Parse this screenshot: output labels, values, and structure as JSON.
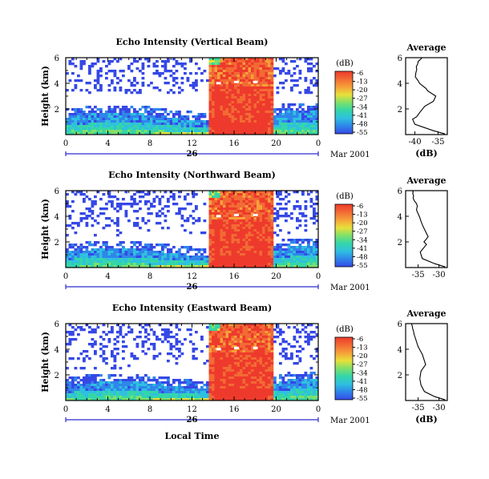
{
  "colors": {
    "background": "#ffffff",
    "echo_scale": [
      "#3548e6",
      "#2f86ea",
      "#2fc0e0",
      "#34d6a8",
      "#7fe06a",
      "#e8e03a",
      "#f6a03a",
      "#f26a34",
      "#ee3a2c"
    ],
    "profile_line": "#000000"
  },
  "chart_data": [
    {
      "type": "heatmap",
      "title": "Echo Intensity (Vertical Beam)",
      "ylabel": "Height (km)",
      "xlabel": "",
      "x_ticks": [
        "0",
        "4",
        "8",
        "12",
        "16",
        "20",
        "0"
      ],
      "y_ticks": [
        "6",
        "4",
        "2"
      ],
      "xlim": [
        0,
        24
      ],
      "ylim": [
        0,
        6
      ],
      "date_label": "26",
      "month_label": "Mar 2001",
      "colorbar": {
        "unit": "(dB)",
        "ticks": [
          "-6",
          "-13",
          "-20",
          "-27",
          "-34",
          "-41",
          "-48",
          "-55"
        ],
        "range": [
          -55,
          -6
        ]
      },
      "rain_period_hours": [
        13.5,
        19.5
      ],
      "grid": false
    },
    {
      "type": "line",
      "title": "Average",
      "xlabel": "(dB)",
      "ylabel": "",
      "x_ticks": [
        "-40",
        "-35"
      ],
      "y_ticks": [
        "6",
        "4",
        "2"
      ],
      "xlim": [
        -42,
        -33
      ],
      "ylim": [
        0,
        6
      ],
      "series": [
        {
          "x": [
            -33.5,
            -36,
            -40,
            -40.5,
            -39.6,
            -39,
            -37.9,
            -36,
            -35.5,
            -37.2,
            -37.6,
            -39,
            -39.3,
            -39.9,
            -39.8,
            -39.6,
            -39.7,
            -39.4,
            -39.3,
            -39,
            -38.7,
            -38.5,
            -38.2
          ],
          "y": [
            0.05,
            0.3,
            0.8,
            1.2,
            1.4,
            1.7,
            2.2,
            2.6,
            3.0,
            3.4,
            3.6,
            4.0,
            4.2,
            4.5,
            4.8,
            5.1,
            5.3,
            5.5,
            5.7,
            5.8,
            5.9,
            6.0,
            6.0
          ]
        }
      ]
    },
    {
      "type": "heatmap",
      "title": "Echo Intensity (Northward Beam)",
      "ylabel": "Height (km)",
      "xlabel": "",
      "x_ticks": [
        "0",
        "4",
        "8",
        "12",
        "16",
        "20",
        "0"
      ],
      "y_ticks": [
        "6",
        "4",
        "2"
      ],
      "xlim": [
        0,
        24
      ],
      "ylim": [
        0,
        6
      ],
      "date_label": "26",
      "month_label": "Mar 2001",
      "colorbar": {
        "unit": "(dB)",
        "ticks": [
          "-6",
          "-13",
          "-20",
          "-27",
          "-34",
          "-41",
          "-48",
          "-55"
        ],
        "range": [
          -55,
          -6
        ]
      },
      "rain_period_hours": [
        13.5,
        19.5
      ],
      "grid": false
    },
    {
      "type": "line",
      "title": "Average",
      "xlabel": "",
      "ylabel": "",
      "x_ticks": [
        "-35",
        "-30"
      ],
      "y_ticks": [
        "6",
        "4",
        "2"
      ],
      "xlim": [
        -38,
        -28
      ],
      "ylim": [
        0,
        6
      ],
      "series": [
        {
          "x": [
            -28.5,
            -31,
            -34,
            -34.5,
            -33,
            -33.6,
            -32.6,
            -33.2,
            -33.8,
            -34.3,
            -34.6,
            -35,
            -35.4,
            -35.2,
            -35.4,
            -35.9,
            -36.2,
            -36.1,
            -36.3,
            -36.2,
            -36.4
          ],
          "y": [
            0.05,
            0.3,
            0.7,
            1.2,
            1.8,
            2.0,
            2.4,
            2.8,
            3.2,
            3.6,
            3.9,
            4.2,
            4.5,
            4.8,
            5.0,
            5.2,
            5.4,
            5.6,
            5.8,
            5.9,
            6.0
          ]
        }
      ]
    },
    {
      "type": "heatmap",
      "title": "Echo Intensity (Eastward Beam)",
      "ylabel": "Height (km)",
      "xlabel": "Local Time",
      "x_ticks": [
        "0",
        "4",
        "8",
        "12",
        "16",
        "20",
        "0"
      ],
      "y_ticks": [
        "6",
        "4",
        "2"
      ],
      "xlim": [
        0,
        24
      ],
      "ylim": [
        0,
        6
      ],
      "date_label": "26",
      "month_label": "Mar 2001",
      "colorbar": {
        "unit": "(dB)",
        "ticks": [
          "-6",
          "-13",
          "-20",
          "-27",
          "-34",
          "-41",
          "-48",
          "-55"
        ],
        "range": [
          -55,
          -6
        ]
      },
      "rain_period_hours": [
        13.5,
        19.5
      ],
      "grid": false
    },
    {
      "type": "line",
      "title": "Average",
      "xlabel": "(dB)",
      "ylabel": "",
      "x_ticks": [
        "-35",
        "-30"
      ],
      "y_ticks": [
        "6",
        "4",
        "2"
      ],
      "xlim": [
        -38,
        -28
      ],
      "ylim": [
        0,
        6
      ],
      "series": [
        {
          "x": [
            -28.5,
            -31,
            -33.5,
            -34.3,
            -34.6,
            -34.3,
            -33.2,
            -33.6,
            -34,
            -34.5,
            -35,
            -35.3,
            -35.6,
            -35.8,
            -36,
            -36.1,
            -36.3,
            -36.4,
            -36.5,
            -36.6
          ],
          "y": [
            0.05,
            0.3,
            0.7,
            1.2,
            1.7,
            2.3,
            2.8,
            3.2,
            3.6,
            3.9,
            4.2,
            4.5,
            4.8,
            5.0,
            5.2,
            5.4,
            5.6,
            5.8,
            5.9,
            6.0
          ]
        }
      ]
    }
  ]
}
